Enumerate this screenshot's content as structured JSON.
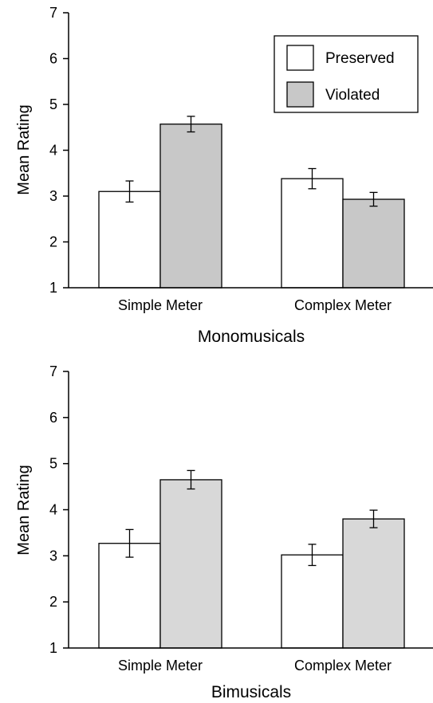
{
  "chart_data": [
    {
      "type": "bar",
      "title": "Monomusicals",
      "xlabel": "",
      "ylabel": "Mean Rating",
      "ylim": [
        1,
        7
      ],
      "yticks": [
        1,
        2,
        3,
        4,
        5,
        6,
        7
      ],
      "grid": false,
      "legend": "top-right",
      "categories": [
        "Simple Meter",
        "Complex Meter"
      ],
      "series": [
        {
          "name": "Preserved",
          "color": "#ffffff",
          "values": [
            3.1,
            3.38
          ],
          "errors": [
            0.23,
            0.22
          ]
        },
        {
          "name": "Violated",
          "color": "#c8c8c8",
          "values": [
            4.57,
            2.93
          ],
          "errors": [
            0.17,
            0.15
          ]
        }
      ]
    },
    {
      "type": "bar",
      "title": "Bimusicals",
      "xlabel": "",
      "ylabel": "Mean Rating",
      "ylim": [
        1,
        7
      ],
      "yticks": [
        1,
        2,
        3,
        4,
        5,
        6,
        7
      ],
      "grid": false,
      "legend": "none",
      "categories": [
        "Simple Meter",
        "Complex Meter"
      ],
      "series": [
        {
          "name": "Preserved",
          "color": "#ffffff",
          "values": [
            3.27,
            3.02
          ],
          "errors": [
            0.3,
            0.23
          ]
        },
        {
          "name": "Violated",
          "color": "#d8d8d8",
          "values": [
            4.65,
            3.8
          ],
          "errors": [
            0.2,
            0.19
          ]
        }
      ]
    }
  ]
}
